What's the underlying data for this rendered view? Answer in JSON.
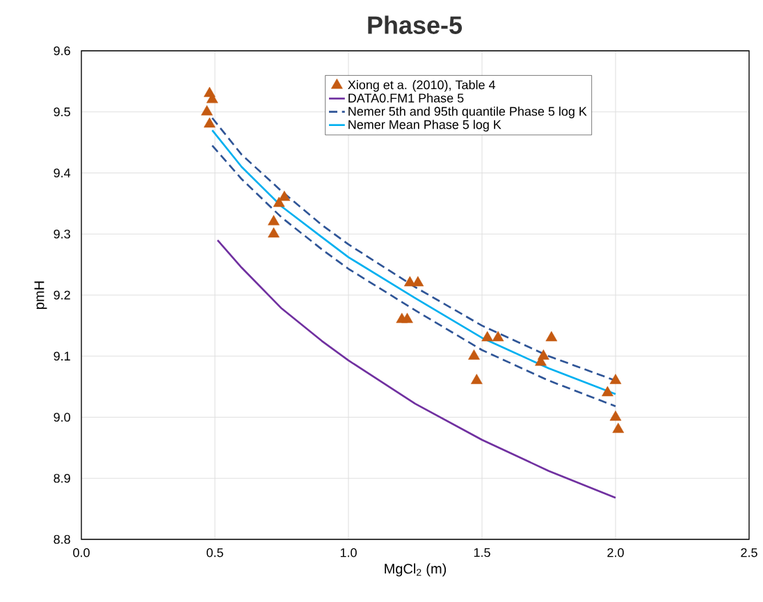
{
  "chart_data": {
    "type": "line",
    "title": "Phase-5",
    "xlabel": "MgCl$_{2}$ (m)",
    "ylabel": "pmH",
    "xlim": [
      0,
      2.5
    ],
    "ylim": [
      8.8,
      9.6
    ],
    "xticks": [
      {
        "value": 0,
        "label": "0.0"
      },
      0.5,
      {
        "value": 1,
        "label": "1.0"
      },
      1.5,
      {
        "value": 2,
        "label": "2.0"
      },
      2.5
    ],
    "yticks": [
      8.8,
      8.9,
      {
        "value": 9,
        "label": "9.0"
      },
      9.1,
      9.2,
      9.3,
      9.4,
      9.5,
      9.6
    ],
    "grid": true,
    "legend": "top right",
    "series": [
      {
        "name": "Xiong et a. (2010), Table 4",
        "type": "scatter",
        "marker": "triangle",
        "color": "#c55a11",
        "x": [
          0.49,
          0.48,
          0.47,
          0.48,
          0.74,
          0.76,
          0.72,
          0.72,
          1.23,
          1.26,
          1.2,
          1.22,
          1.47,
          1.48,
          1.52,
          1.56,
          1.72,
          1.73,
          1.76,
          1.97,
          2.0,
          2.0,
          2.01
        ],
        "values": [
          9.52,
          9.53,
          9.5,
          9.48,
          9.35,
          9.36,
          9.32,
          9.3,
          9.22,
          9.22,
          9.16,
          9.16,
          9.1,
          9.06,
          9.13,
          9.13,
          9.09,
          9.1,
          9.13,
          9.04,
          9.06,
          9.0,
          8.98
        ]
      },
      {
        "name": "DATA0.FM1 Phase 5",
        "type": "line",
        "line_style": "solid",
        "color": "#7030a0",
        "x": [
          0.51,
          0.6,
          0.75,
          0.9,
          1.0,
          1.25,
          1.5,
          1.75,
          2.0
        ],
        "values": [
          9.29,
          9.245,
          9.178,
          9.125,
          9.093,
          9.022,
          8.963,
          8.912,
          8.868
        ]
      },
      {
        "name": "Nemer 5th and 95th quantile Phase 5 log K",
        "type": "line",
        "line_style": "dashed",
        "color": "#2f5597",
        "x": [
          0.49,
          0.6,
          0.75,
          0.9,
          1.0,
          1.25,
          1.5,
          1.75,
          2.0
        ],
        "values": [
          9.49,
          9.43,
          9.37,
          9.315,
          9.283,
          9.213,
          9.15,
          9.1,
          9.06
        ]
      },
      {
        "type": "line",
        "line_style": "dashed",
        "color": "#2f5597",
        "x": [
          0.49,
          0.6,
          0.75,
          0.9,
          1.0,
          1.25,
          1.5,
          1.75,
          2.0
        ],
        "values": [
          9.445,
          9.39,
          9.327,
          9.275,
          9.243,
          9.175,
          9.11,
          9.06,
          9.018
        ]
      },
      {
        "name": "Nemer Mean Phase 5 log K",
        "type": "line",
        "line_style": "solid",
        "color": "#00b0f0",
        "x": [
          0.49,
          0.6,
          0.75,
          0.9,
          1.0,
          1.25,
          1.5,
          1.75,
          2.0
        ],
        "values": [
          9.47,
          9.41,
          9.345,
          9.295,
          9.262,
          9.195,
          9.13,
          9.08,
          9.038
        ]
      }
    ]
  }
}
